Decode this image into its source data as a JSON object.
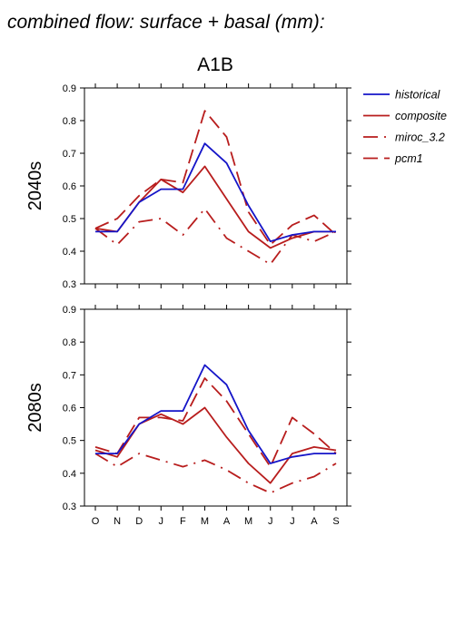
{
  "title": "combined flow: surface + basal (mm):",
  "subtitle": "A1B",
  "colors": {
    "historical": "#1515c8",
    "composite": "#b81d1d",
    "miroc_3.2": "#b81d1d",
    "pcm1": "#b81d1d"
  },
  "legend": [
    {
      "name": "historical",
      "style": "solid",
      "color": "#1515c8"
    },
    {
      "name": "composite",
      "style": "solid",
      "color": "#b81d1d"
    },
    {
      "name": "miroc_3.2",
      "style": "dashdot",
      "color": "#b81d1d"
    },
    {
      "name": "pcm1",
      "style": "dashed",
      "color": "#b81d1d"
    }
  ],
  "chart_data": [
    {
      "type": "line",
      "ylabel": "2040s",
      "categories": [
        "O",
        "N",
        "D",
        "J",
        "F",
        "M",
        "A",
        "M",
        "J",
        "J",
        "A",
        "S"
      ],
      "ylim": [
        0.3,
        0.9
      ],
      "yticks": [
        "0.3",
        "0.4",
        "0.5",
        "0.6",
        "0.7",
        "0.8",
        "0.9"
      ],
      "grid": false,
      "legend_position": "right",
      "series": [
        {
          "name": "historical",
          "values": [
            0.46,
            0.46,
            0.55,
            0.59,
            0.59,
            0.73,
            0.67,
            0.54,
            0.43,
            0.45,
            0.46,
            0.46
          ]
        },
        {
          "name": "composite",
          "values": [
            0.47,
            0.46,
            0.55,
            0.62,
            0.58,
            0.66,
            0.56,
            0.46,
            0.41,
            0.44,
            0.46,
            0.46
          ]
        },
        {
          "name": "miroc_3.2",
          "values": [
            0.47,
            0.42,
            0.49,
            0.5,
            0.45,
            0.53,
            0.44,
            0.4,
            0.36,
            0.45,
            0.43,
            0.46
          ]
        },
        {
          "name": "pcm1",
          "values": [
            0.47,
            0.5,
            0.57,
            0.62,
            0.61,
            0.83,
            0.75,
            0.52,
            0.42,
            0.48,
            0.51,
            0.45
          ]
        }
      ]
    },
    {
      "type": "line",
      "ylabel": "2080s",
      "categories": [
        "O",
        "N",
        "D",
        "J",
        "F",
        "M",
        "A",
        "M",
        "J",
        "J",
        "A",
        "S"
      ],
      "ylim": [
        0.3,
        0.9
      ],
      "yticks": [
        "0.3",
        "0.4",
        "0.5",
        "0.6",
        "0.7",
        "0.8",
        "0.9"
      ],
      "grid": false,
      "legend_position": "none",
      "series": [
        {
          "name": "historical",
          "values": [
            0.46,
            0.46,
            0.55,
            0.59,
            0.59,
            0.73,
            0.67,
            0.53,
            0.43,
            0.45,
            0.46,
            0.46
          ]
        },
        {
          "name": "composite",
          "values": [
            0.47,
            0.45,
            0.55,
            0.58,
            0.55,
            0.6,
            0.51,
            0.43,
            0.37,
            0.46,
            0.48,
            0.47
          ]
        },
        {
          "name": "miroc_3.2",
          "values": [
            0.46,
            0.42,
            0.46,
            0.44,
            0.42,
            0.44,
            0.41,
            0.37,
            0.34,
            0.37,
            0.39,
            0.43
          ]
        },
        {
          "name": "pcm1",
          "values": [
            0.48,
            0.46,
            0.57,
            0.57,
            0.56,
            0.69,
            0.62,
            0.52,
            0.42,
            0.57,
            0.52,
            0.46
          ]
        }
      ]
    }
  ]
}
